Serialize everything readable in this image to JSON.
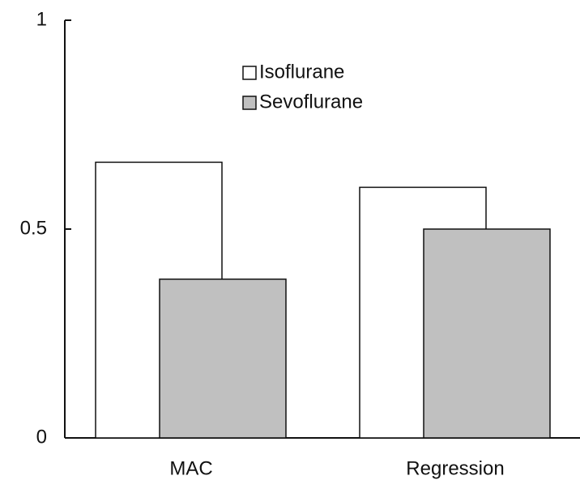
{
  "chart_data": {
    "type": "bar",
    "categories": [
      "MAC",
      "Regression"
    ],
    "series": [
      {
        "name": "Isoflurane",
        "color": "#ffffff",
        "values": [
          0.66,
          0.6
        ]
      },
      {
        "name": "Sevoflurane",
        "color": "#c0c0c0",
        "values": [
          0.38,
          0.5
        ]
      }
    ],
    "ylim": [
      0,
      1
    ],
    "yticks": [
      0,
      0.5,
      1
    ],
    "grid": false,
    "legend": "top"
  }
}
